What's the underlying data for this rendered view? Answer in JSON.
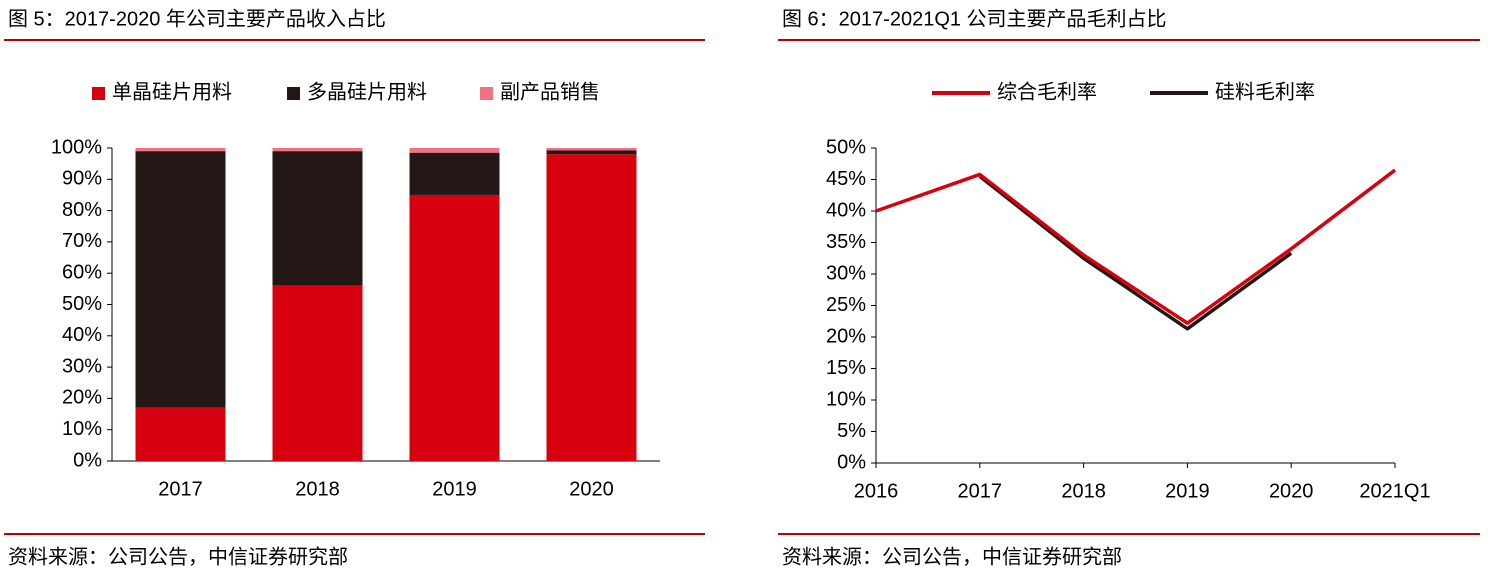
{
  "chart_data": [
    {
      "type": "stacked_bar",
      "title": "图 5：2017-2020 年公司主要产品收入占比",
      "source": "资料来源：公司公告，中信证券研究部",
      "categories": [
        "2017",
        "2018",
        "2019",
        "2020"
      ],
      "series": [
        {
          "name": "单晶硅片用料",
          "color": "#d7000f",
          "values": [
            17,
            56,
            85,
            98
          ]
        },
        {
          "name": "多晶硅片用料",
          "color": "#231815",
          "values": [
            82,
            43,
            13.5,
            1.2
          ]
        },
        {
          "name": "副产品销售",
          "color": "#f2707f",
          "values": [
            1,
            1,
            1.5,
            0.8
          ]
        }
      ],
      "ylim": [
        0,
        100
      ],
      "yticks": [
        {
          "value": 0,
          "label": "0%"
        },
        {
          "value": 10,
          "label": "10%"
        },
        {
          "value": 20,
          "label": "20%"
        },
        {
          "value": 30,
          "label": "30%"
        },
        {
          "value": 40,
          "label": "40%"
        },
        {
          "value": 50,
          "label": "50%"
        },
        {
          "value": 60,
          "label": "60%"
        },
        {
          "value": 70,
          "label": "70%"
        },
        {
          "value": 80,
          "label": "80%"
        },
        {
          "value": 90,
          "label": "90%"
        },
        {
          "value": 100,
          "label": "100%"
        }
      ]
    },
    {
      "type": "line",
      "title": "图 6：2017-2021Q1 公司主要产品毛利占比",
      "source": "资料来源：公司公告，中信证券研究部",
      "categories": [
        "2016",
        "2017",
        "2018",
        "2019",
        "2020",
        "2021Q1"
      ],
      "series": [
        {
          "name": "综合毛利率",
          "color": "#d7000f",
          "values": [
            40,
            45.8,
            33,
            22.2,
            34,
            46.5
          ]
        },
        {
          "name": "硅料毛利率",
          "color": "#231815",
          "values": [
            null,
            45.5,
            32.5,
            21.3,
            33.3,
            null
          ]
        }
      ],
      "ylim": [
        0,
        50
      ],
      "yticks": [
        {
          "value": 0,
          "label": "0%"
        },
        {
          "value": 5,
          "label": "5%"
        },
        {
          "value": 10,
          "label": "10%"
        },
        {
          "value": 15,
          "label": "15%"
        },
        {
          "value": 20,
          "label": "20%"
        },
        {
          "value": 25,
          "label": "25%"
        },
        {
          "value": 30,
          "label": "30%"
        },
        {
          "value": 35,
          "label": "35%"
        },
        {
          "value": 40,
          "label": "40%"
        },
        {
          "value": 45,
          "label": "45%"
        },
        {
          "value": 50,
          "label": "50%"
        }
      ]
    }
  ]
}
